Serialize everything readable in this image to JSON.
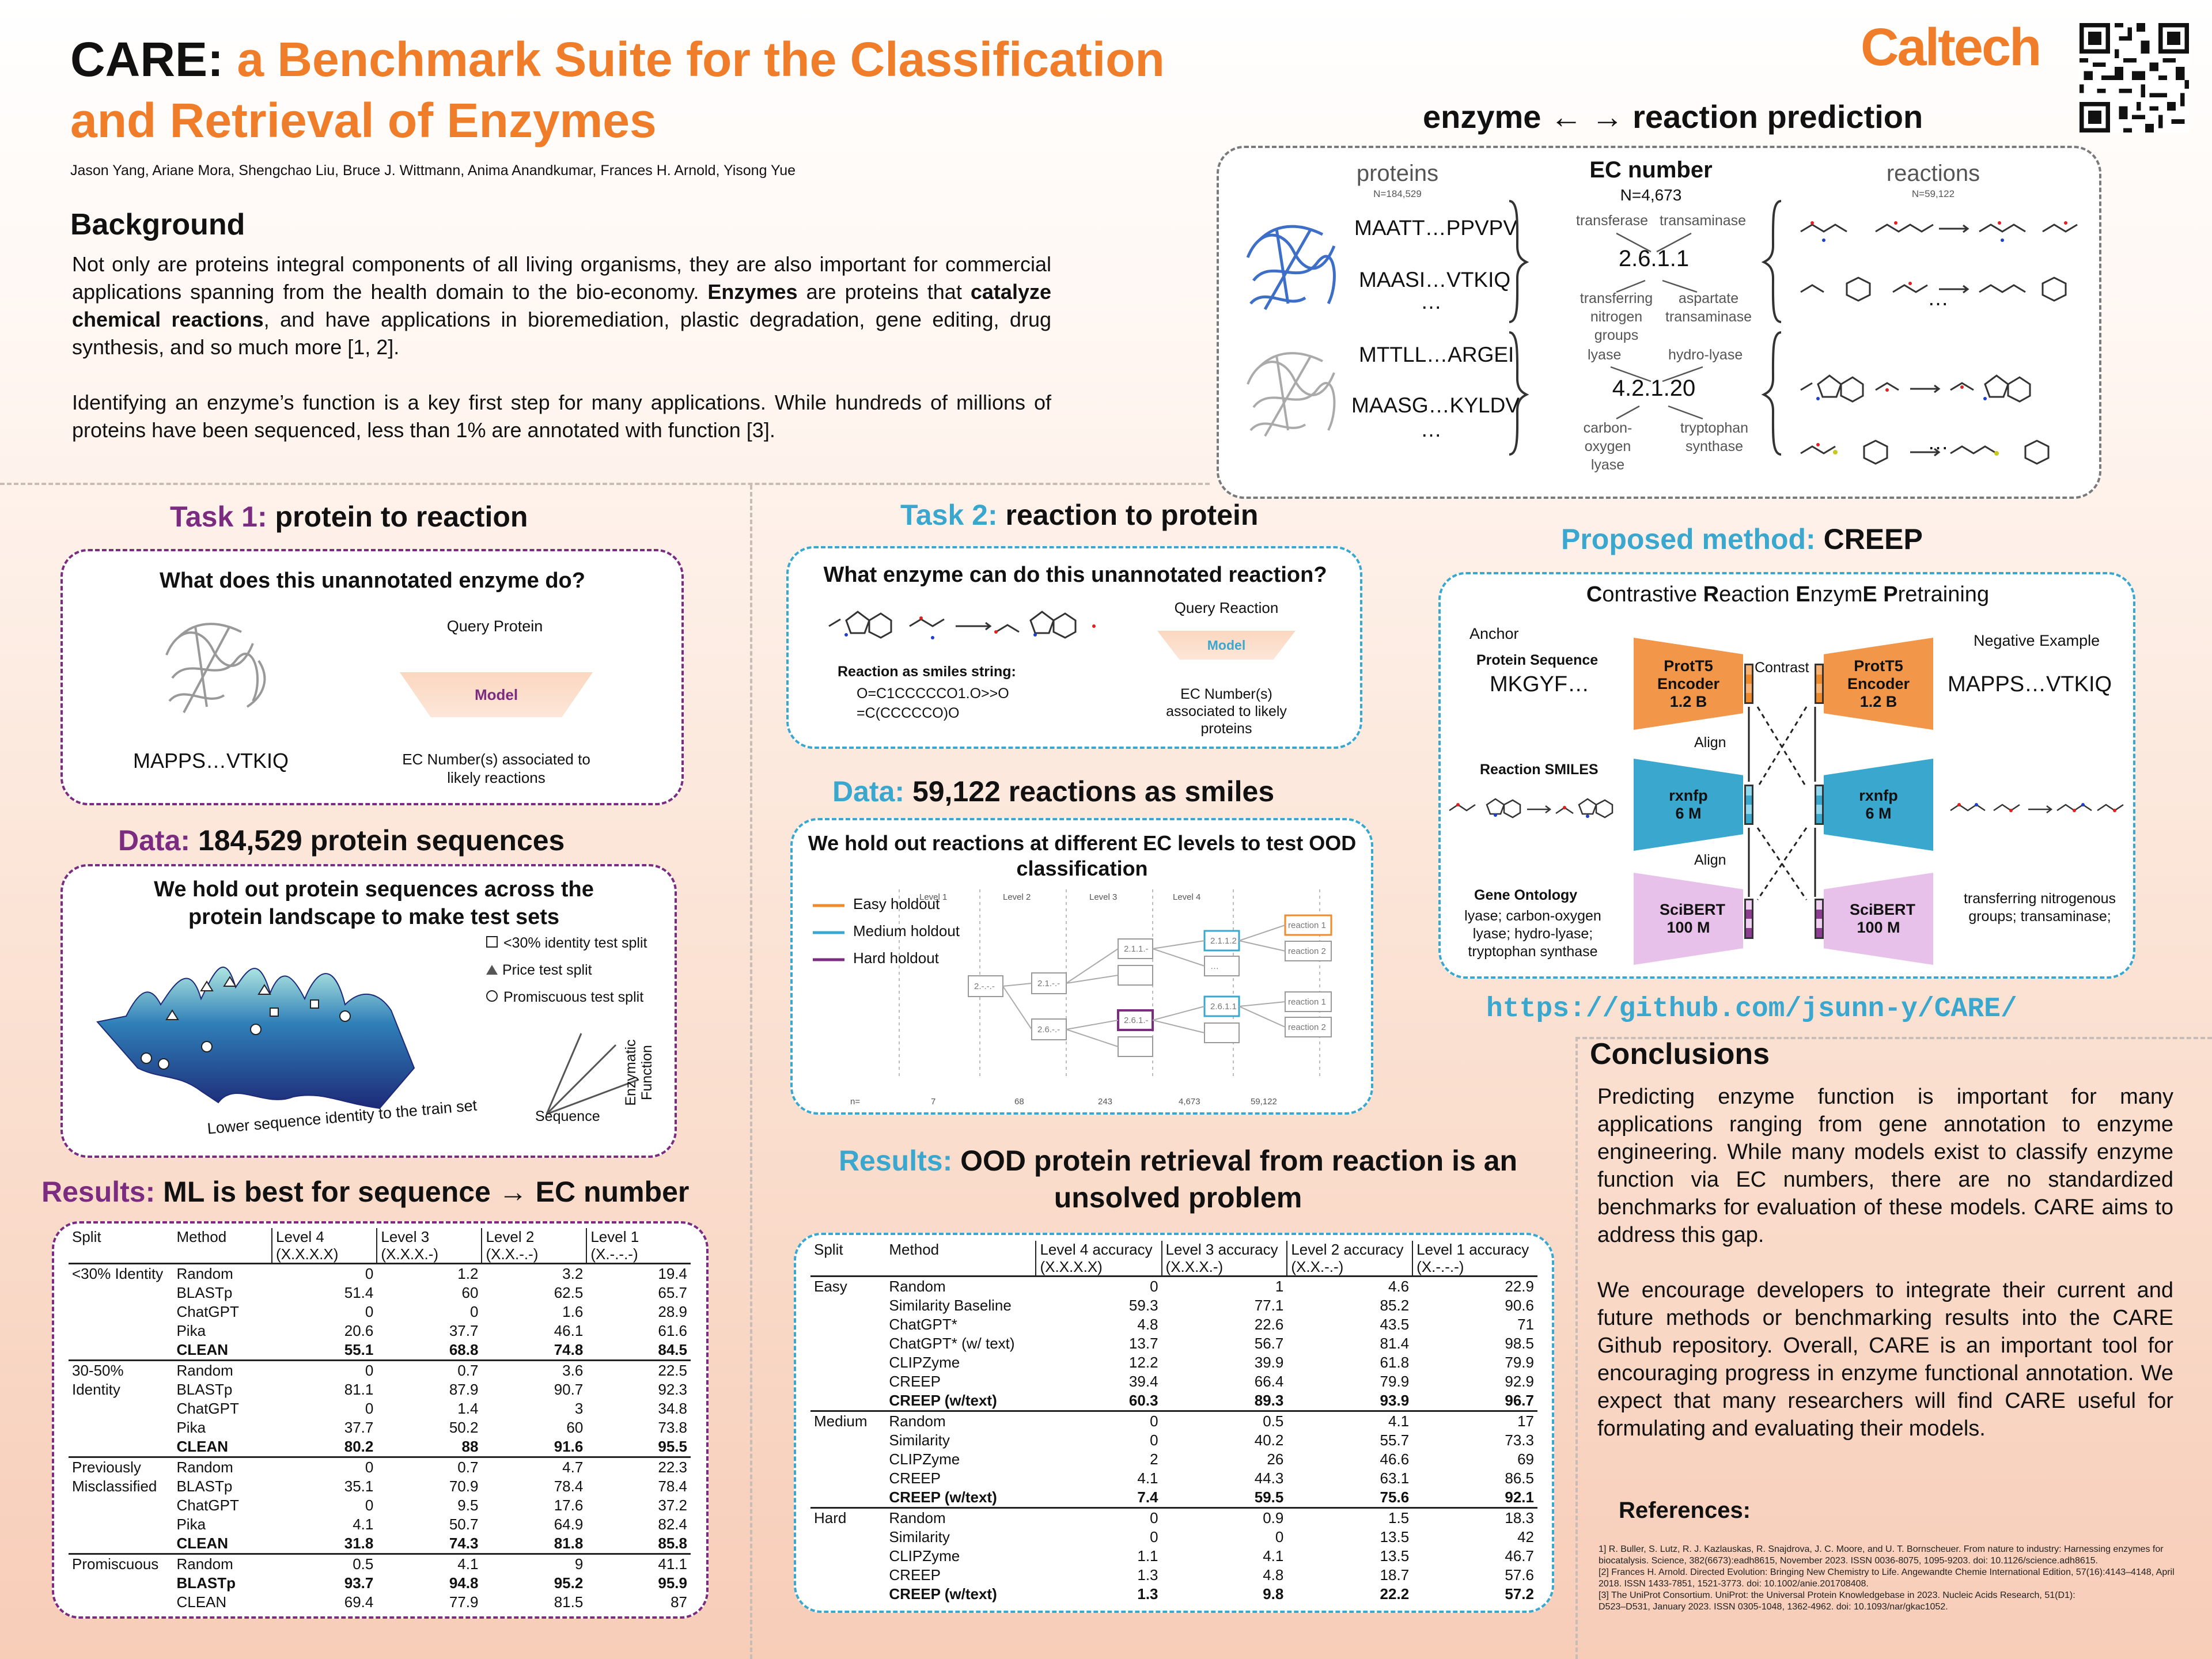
{
  "header": {
    "title_bold": "CARE:",
    "title_rest_line1": "a Benchmark Suite for the Classification",
    "title_rest_line2": "and Retrieval of Enzymes",
    "authors": "Jason Yang, Ariane Mora, Shengchao Liu, Bruce J. Wittmann, Anima Anandkumar, Frances H. Arnold, Yisong Yue",
    "logo": "Caltech",
    "colors": {
      "orange": "#ef7d2a",
      "purple": "#7b2c80",
      "cyan": "#3aa7cf"
    }
  },
  "background": {
    "heading": "Background",
    "p1_a": "Not only are proteins integral components of all living organisms, they are also important for commercial applications spanning from the health domain to the bio-economy.",
    "p1_b": "Enzymes",
    "p1_c": "are proteins that",
    "p1_d": "catalyze chemical reactions",
    "p1_e": ", and have applications in bioremediation, plastic degradation, gene editing,  drug synthesis, and so much more [1, 2].",
    "p2": "Identifying an enzyme’s function is a key first step for many applications. While hundreds of millions of proteins have been sequenced, less than 1% are annotated with function [3]."
  },
  "overview": {
    "heading": "enzyme ← → reaction prediction",
    "proteins_label": "proteins",
    "proteins_n": "N=184,529",
    "ec_label": "EC number",
    "ec_n": "N=4,673",
    "reactions_label": "reactions",
    "reactions_n": "N=59,122",
    "seqs": [
      "MAATT…PPVPV",
      "MAASI…VTKIQ",
      "…",
      "MTTLL…ARGEI",
      "MAASG…KYLDV",
      "…"
    ],
    "ec1": "2.6.1.1",
    "ec2": "4.2.1.20",
    "ec1_labels": [
      "transferase",
      "transaminase",
      "transferring nitrogen groups",
      "aspartate transaminase"
    ],
    "ec2_labels": [
      "lyase",
      "hydro-lyase",
      "carbon-oxygen lyase",
      "tryptophan synthase"
    ],
    "dots": "…"
  },
  "task1": {
    "label": "Task 1:",
    "heading": "protein to reaction",
    "question": "What does this unannotated enzyme do?",
    "query": "Query Protein",
    "model": "Model",
    "output": "EC Number(s) associated to likely reactions",
    "seq": "MAPPS…VTKIQ"
  },
  "data1": {
    "label": "Data:",
    "heading": "184,529 protein sequences",
    "box_title": "We hold out protein sequences across the protein landscape to make test sets",
    "legend": [
      "<30% identity test split",
      "Price test split",
      "Promiscuous test split"
    ],
    "axis_x": "Lower sequence identity to the train set",
    "axis_seq": "Sequence",
    "axis_fn": "Enzymatic Function"
  },
  "results1": {
    "label": "Results:",
    "heading": "ML is best for sequence → EC number",
    "columns": [
      "Split",
      "Method",
      "Level 4 (X.X.X.X)",
      "Level 3 (X.X.X.-)",
      "Level 2 (X.X.-.-)",
      "Level 1 (X.-.-.-)"
    ],
    "groups": [
      {
        "split": "<30% Identity",
        "rows": [
          {
            "m": "Random",
            "v": [
              "0",
              "1.2",
              "3.2",
              "19.4"
            ]
          },
          {
            "m": "BLASTp",
            "v": [
              "51.4",
              "60",
              "62.5",
              "65.7"
            ]
          },
          {
            "m": "ChatGPT",
            "v": [
              "0",
              "0",
              "1.6",
              "28.9"
            ]
          },
          {
            "m": "Pika",
            "v": [
              "20.6",
              "37.7",
              "46.1",
              "61.6"
            ]
          },
          {
            "m": "CLEAN",
            "v": [
              "55.1",
              "68.8",
              "74.8",
              "84.5"
            ],
            "bold": true
          }
        ]
      },
      {
        "split": "30-50% Identity",
        "rows": [
          {
            "m": "Random",
            "v": [
              "0",
              "0.7",
              "3.6",
              "22.5"
            ]
          },
          {
            "m": "BLASTp",
            "v": [
              "81.1",
              "87.9",
              "90.7",
              "92.3"
            ]
          },
          {
            "m": "ChatGPT",
            "v": [
              "0",
              "1.4",
              "3",
              "34.8"
            ]
          },
          {
            "m": "Pika",
            "v": [
              "37.7",
              "50.2",
              "60",
              "73.8"
            ]
          },
          {
            "m": "CLEAN",
            "v": [
              "80.2",
              "88",
              "91.6",
              "95.5"
            ],
            "bold": true
          }
        ]
      },
      {
        "split": "Previously Misclassified",
        "rows": [
          {
            "m": "Random",
            "v": [
              "0",
              "0.7",
              "4.7",
              "22.3"
            ]
          },
          {
            "m": "BLASTp",
            "v": [
              "35.1",
              "70.9",
              "78.4",
              "78.4"
            ]
          },
          {
            "m": "ChatGPT",
            "v": [
              "0",
              "9.5",
              "17.6",
              "37.2"
            ]
          },
          {
            "m": "Pika",
            "v": [
              "4.1",
              "50.7",
              "64.9",
              "82.4"
            ]
          },
          {
            "m": "CLEAN",
            "v": [
              "31.8",
              "74.3",
              "81.8",
              "85.8"
            ],
            "bold": true
          }
        ]
      },
      {
        "split": "Promiscuous",
        "rows": [
          {
            "m": "Random",
            "v": [
              "0.5",
              "4.1",
              "9",
              "41.1"
            ]
          },
          {
            "m": "BLASTp",
            "v": [
              "93.7",
              "94.8",
              "95.2",
              "95.9"
            ],
            "bold": true
          },
          {
            "m": "CLEAN",
            "v": [
              "69.4",
              "77.9",
              "81.5",
              "87"
            ]
          }
        ]
      }
    ]
  },
  "task2": {
    "label": "Task 2:",
    "heading": "reaction to protein",
    "question": "What enzyme can do this unannotated reaction?",
    "query": "Query Reaction",
    "model": "Model",
    "output": "EC Number(s) associated to likely proteins",
    "smiles_label": "Reaction as smiles string:",
    "smiles_1": "O=C1CCCCCO1.O>>O",
    "smiles_2": "=C(CCCCCO)O"
  },
  "data2": {
    "label": "Data:",
    "heading": "59,122 reactions as smiles",
    "box_title": "We hold out reactions at different EC levels to test OOD classification",
    "levels": [
      "Level 1",
      "Level 2",
      "Level 3",
      "Level 4"
    ],
    "legend": [
      "Easy holdout",
      "Medium holdout",
      "Hard holdout"
    ],
    "counts_label": "n=",
    "counts": [
      "7",
      "68",
      "243",
      "4,673",
      "59,122"
    ],
    "nodes": [
      "2.-.-.-",
      "2.1.-.-",
      "2.6.-.-",
      "2.1.1.-",
      "2.6.1.-",
      "2.1.1.2",
      "2.6.1.1",
      "reaction 1",
      "reaction 2",
      "…"
    ]
  },
  "results2": {
    "label": "Results:",
    "heading_l1": "OOD protein retrieval from reaction is an",
    "heading_l2": "unsolved problem",
    "columns": [
      "Split",
      "Method",
      "Level 4 accuracy (X.X.X.X)",
      "Level 3 accuracy (X.X.X.-)",
      "Level 2 accuracy (X.X.-.-)",
      "Level 1 accuracy (X.-.-.-)"
    ],
    "groups": [
      {
        "split": "Easy",
        "rows": [
          {
            "m": "Random",
            "v": [
              "0",
              "1",
              "4.6",
              "22.9"
            ]
          },
          {
            "m": "Similarity Baseline",
            "v": [
              "59.3",
              "77.1",
              "85.2",
              "90.6"
            ]
          },
          {
            "m": "ChatGPT*",
            "v": [
              "4.8",
              "22.6",
              "43.5",
              "71"
            ]
          },
          {
            "m": "ChatGPT* (w/ text)",
            "v": [
              "13.7",
              "56.7",
              "81.4",
              "98.5"
            ]
          },
          {
            "m": "CLIPZyme",
            "v": [
              "12.2",
              "39.9",
              "61.8",
              "79.9"
            ]
          },
          {
            "m": "CREEP",
            "v": [
              "39.4",
              "66.4",
              "79.9",
              "92.9"
            ]
          },
          {
            "m": "CREEP (w/text)",
            "v": [
              "60.3",
              "89.3",
              "93.9",
              "96.7"
            ],
            "bold": true
          }
        ]
      },
      {
        "split": "Medium",
        "rows": [
          {
            "m": "Random",
            "v": [
              "0",
              "0.5",
              "4.1",
              "17"
            ]
          },
          {
            "m": "Similarity",
            "v": [
              "0",
              "40.2",
              "55.7",
              "73.3"
            ]
          },
          {
            "m": "CLIPZyme",
            "v": [
              "2",
              "26",
              "46.6",
              "69"
            ]
          },
          {
            "m": "CREEP",
            "v": [
              "4.1",
              "44.3",
              "63.1",
              "86.5"
            ]
          },
          {
            "m": "CREEP (w/text)",
            "v": [
              "7.4",
              "59.5",
              "75.6",
              "92.1"
            ],
            "bold": true
          }
        ]
      },
      {
        "split": "Hard",
        "rows": [
          {
            "m": "Random",
            "v": [
              "0",
              "0.9",
              "1.5",
              "18.3"
            ]
          },
          {
            "m": "Similarity",
            "v": [
              "0",
              "0",
              "13.5",
              "42"
            ]
          },
          {
            "m": "CLIPZyme",
            "v": [
              "1.1",
              "4.1",
              "13.5",
              "46.7"
            ]
          },
          {
            "m": "CREEP",
            "v": [
              "1.3",
              "4.8",
              "18.7",
              "57.6"
            ]
          },
          {
            "m": "CREEP (w/text)",
            "v": [
              "1.3",
              "9.8",
              "22.2",
              "57.2"
            ],
            "bold": true
          }
        ]
      }
    ]
  },
  "method": {
    "label": "Proposed method:",
    "heading": "CREEP",
    "subtitle_parts": [
      "C",
      "ontrastive ",
      "R",
      "eaction ",
      "E",
      "nzym",
      "E",
      " ",
      "P",
      "retraining"
    ],
    "anchor": "Anchor",
    "negative": "Negative Example",
    "protein_seq_label": "Protein Sequence",
    "protein_seq": "MKGYF…",
    "neg_seq": "MAPPS…VTKIQ",
    "smiles_label": "Reaction SMILES",
    "go_label": "Gene Ontology",
    "go_text": "lyase; carbon-oxygen lyase; hydro-lyase; tryptophan synthase",
    "neg_go": "transferring nitrogenous groups; transaminase;",
    "enc1": "ProtT5 Encoder 1.2 B",
    "enc2": "rxnfp 6 M",
    "enc3": "SciBERT 100 M",
    "contrast": "Contrast",
    "align": "Align",
    "url": "https://github.com/jsunn-y/CARE/"
  },
  "conclusions": {
    "heading": "Conclusions",
    "p1": "Predicting enzyme function is important for many applications ranging from gene annotation to enzyme engineering. While many models exist to classify enzyme function via EC numbers, there are no standardized benchmarks for evaluation of these models. CARE aims to address this gap.",
    "p2": "We encourage developers to integrate their current and future methods or benchmarking results into the CARE Github repository. Overall, CARE is an important tool for encouraging progress in enzyme functional annotation. We expect that many researchers will find CARE useful for formulating and evaluating their models.",
    "ref_heading": "References:",
    "refs": [
      "1] R. Buller, S. Lutz, R. J. Kazlauskas, R. Snajdrova, J. C. Moore, and U. T. Bornscheuer. From nature to industry: Harnessing enzymes for biocatalysis. Science, 382(6673):eadh8615, November 2023. ISSN 0036-8075, 1095-9203. doi: 10.1126/science.adh8615.",
      "[2] Frances H. Arnold. Directed Evolution: Bringing New Chemistry to Life. Angewandte Chemie International Edition, 57(16):4143–4148, April 2018. ISSN 1433-7851, 1521-3773. doi: 10.1002/anie.201708408.",
      "[3] The UniProt Consortium. UniProt: the Universal Protein Knowledgebase in 2023. Nucleic Acids Research, 51(D1):",
      "D523–D531, January 2023. ISSN 0305-1048, 1362-4962. doi: 10.1093/nar/gkac1052."
    ]
  }
}
